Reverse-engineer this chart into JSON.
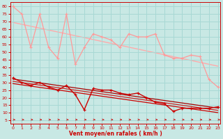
{
  "bg_color": "#c8e8e4",
  "grid_color": "#a8d8d4",
  "xlabel": "Vent moyen/en rafales ( km/h )",
  "xlabel_color": "#cc0000",
  "tick_color": "#cc0000",
  "x_ticks": [
    0,
    1,
    2,
    3,
    4,
    5,
    6,
    7,
    8,
    9,
    10,
    11,
    12,
    13,
    14,
    15,
    16,
    17,
    18,
    19,
    20,
    21,
    22,
    23
  ],
  "y_ticks": [
    5,
    10,
    15,
    20,
    25,
    30,
    35,
    40,
    45,
    50,
    55,
    60,
    65,
    70,
    75,
    80
  ],
  "ylim": [
    3,
    83
  ],
  "xlim": [
    -0.3,
    23.3
  ],
  "gust_color": "#ff9999",
  "gust_y": [
    80,
    75,
    53,
    75,
    53,
    46,
    75,
    42,
    53,
    62,
    60,
    58,
    53,
    62,
    60,
    60,
    62,
    48,
    46,
    46,
    48,
    47,
    32,
    27
  ],
  "mean_color": "#cc0000",
  "mean_y": [
    33,
    30,
    28,
    30,
    27,
    25,
    28,
    22,
    12,
    26,
    25,
    25,
    23,
    22,
    23,
    20,
    17,
    16,
    11,
    13,
    13,
    13,
    13,
    14
  ],
  "gust_trend_color": "#ffaaaa",
  "mean_trend1_color": "#cc2222",
  "mean_trend2_color": "#aa0000",
  "mean_trend3_color": "#cc0000",
  "arrow_color": "#cc0000",
  "spine_color": "#cc0000"
}
